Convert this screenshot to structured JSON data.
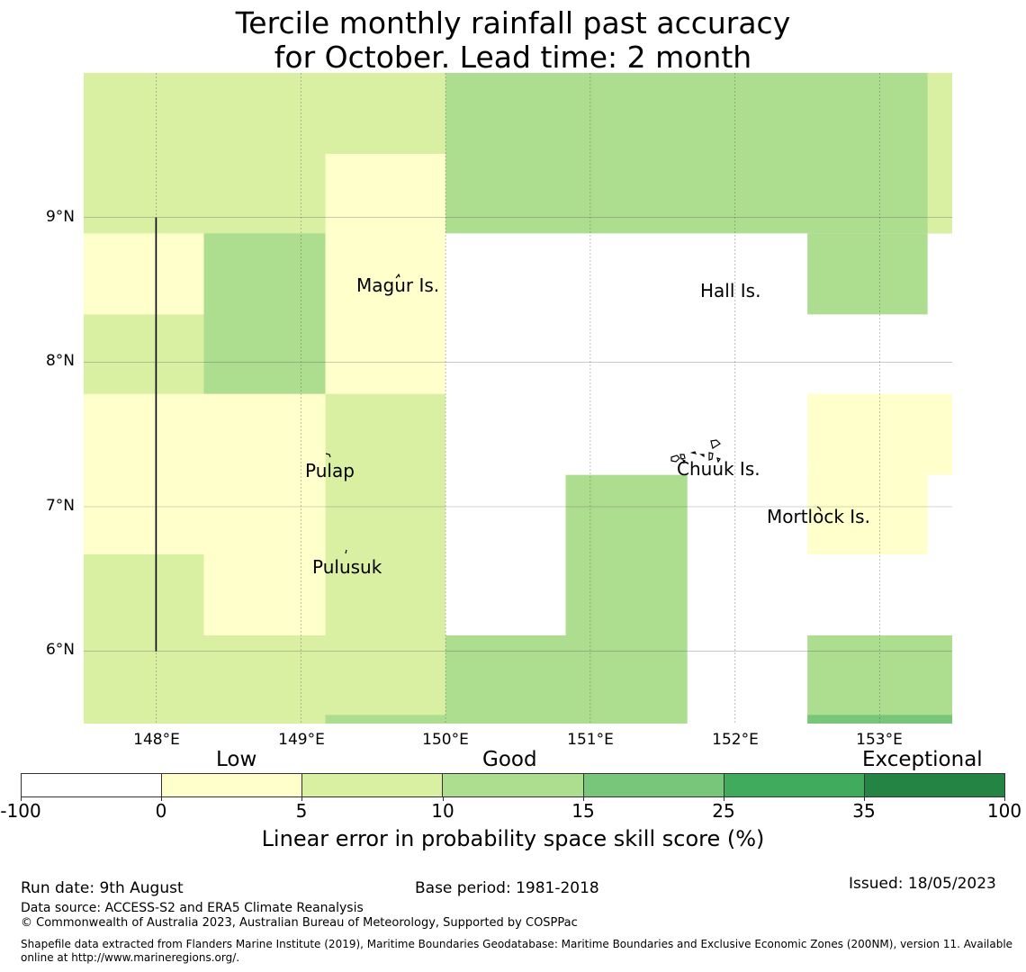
{
  "title_line1": "Tercile monthly rainfall past accuracy",
  "title_line2": "for October. Lead time: 2 month",
  "map": {
    "lon_range": [
      147.5,
      153.5
    ],
    "lat_range": [
      5.5,
      10.0
    ],
    "lat_ticks": [
      "9°N",
      "8°N",
      "7°N",
      "6°N"
    ],
    "lon_ticks": [
      "148°E",
      "149°E",
      "150°E",
      "151°E",
      "152°E",
      "153°E"
    ],
    "places": [
      "Magur Is.",
      "Hall Is.",
      "Pulap",
      "Chuuk Is.",
      "Mortlock Is.",
      "Pulusuk"
    ],
    "skill_cells": [
      {
        "lon": [
          147.5,
          150.0
        ],
        "lat": [
          5.5,
          10.0
        ],
        "category": "5-10"
      },
      {
        "lon": [
          150.0,
          153.5
        ],
        "lat": [
          8.89,
          10.0
        ],
        "category": "10-15"
      },
      {
        "lon": [
          152.5,
          153.33
        ],
        "lat": [
          8.33,
          8.89
        ],
        "category": "10-15"
      },
      {
        "lon": [
          153.33,
          153.5
        ],
        "lat": [
          8.89,
          10.0
        ],
        "category": "5-10"
      },
      {
        "lon": [
          147.5,
          148.33
        ],
        "lat": [
          8.33,
          8.89
        ],
        "category": "0-5"
      },
      {
        "lon": [
          148.33,
          149.17
        ],
        "lat": [
          7.78,
          8.89
        ],
        "category": "10-15"
      },
      {
        "lon": [
          149.17,
          150.0
        ],
        "lat": [
          7.78,
          9.44
        ],
        "category": "0-5"
      },
      {
        "lon": [
          147.5,
          149.17
        ],
        "lat": [
          6.67,
          7.78
        ],
        "category": "0-5"
      },
      {
        "lon": [
          148.33,
          149.17
        ],
        "lat": [
          6.11,
          6.67
        ],
        "category": "0-5"
      },
      {
        "lon": [
          150.83,
          151.67
        ],
        "lat": [
          6.11,
          7.22
        ],
        "category": "10-15"
      },
      {
        "lon": [
          150.0,
          151.67
        ],
        "lat": [
          5.5,
          6.11
        ],
        "category": "10-15"
      },
      {
        "lon": [
          152.5,
          153.5
        ],
        "lat": [
          7.22,
          7.78
        ],
        "category": "0-5"
      },
      {
        "lon": [
          152.5,
          153.33
        ],
        "lat": [
          6.67,
          7.22
        ],
        "category": "0-5"
      },
      {
        "lon": [
          152.5,
          153.5
        ],
        "lat": [
          5.5,
          6.11
        ],
        "category": "10-15"
      },
      {
        "lon": [
          152.5,
          153.5
        ],
        "lat": [
          5.5,
          5.56
        ],
        "category": "15-25"
      },
      {
        "lon": [
          149.17,
          150.0
        ],
        "lat": [
          5.5,
          5.56
        ],
        "category": "10-15"
      }
    ],
    "boundary_line": {
      "lon": 148.0,
      "lat": [
        6.0,
        9.0
      ]
    }
  },
  "colorbar": {
    "categories": [
      {
        "label": "Low",
        "anchor_tick": "0"
      },
      {
        "label": "Good",
        "anchor_tick": "10"
      },
      {
        "label": "Exceptional",
        "anchor_tick": "35"
      }
    ],
    "ticks": [
      "-100",
      "0",
      "5",
      "10",
      "15",
      "25",
      "35",
      "100"
    ],
    "colors": [
      "#ffffff",
      "#ffffcc",
      "#d9f0a3",
      "#addd8e",
      "#78c679",
      "#41ab5d",
      "#238443"
    ],
    "label": "Linear error in probability space skill score (%)"
  },
  "footer": {
    "run_date": "Run date: 9th August",
    "base_period": "Base period: 1981-2018",
    "issued": "Issued: 18/05/2023",
    "data_source": "Data source: ACCESS-S2 and ERA5 Climate Reanalysis",
    "copyright": "© Commonwealth of Australia 2023, Australian Bureau of Meteorology, Supported by COSPPac",
    "shapefile": "Shapefile data extracted from Flanders Marine Institute (2019), Maritime Boundaries Geodatabase: Maritime Boundaries and Exclusive Economic Zones (200NM), version 11. Available online at http://www.marineregions.org/."
  }
}
